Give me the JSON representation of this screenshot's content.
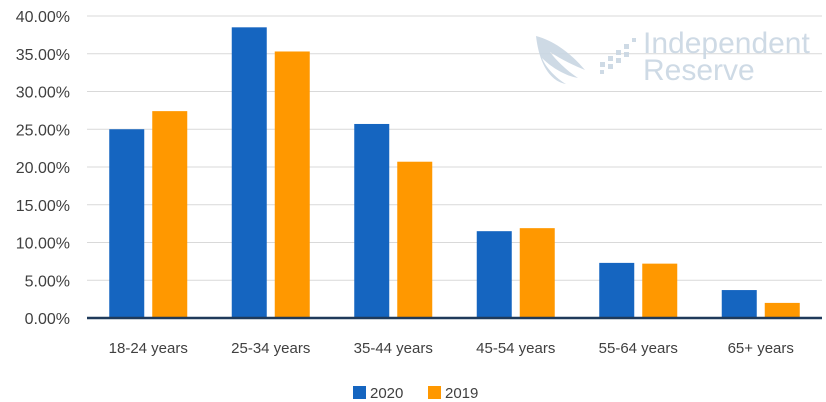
{
  "chart_data": {
    "type": "bar",
    "categories": [
      "18-24 years",
      "25-34 years",
      "35-44 years",
      "45-54 years",
      "55-64 years",
      "65+ years"
    ],
    "series": [
      {
        "name": "2020",
        "color": "#1565c0",
        "values": [
          25.0,
          38.5,
          25.7,
          11.5,
          7.3,
          3.7
        ]
      },
      {
        "name": "2019",
        "color": "#ff9800",
        "values": [
          27.4,
          35.3,
          20.7,
          11.9,
          7.2,
          2.0
        ]
      }
    ],
    "y_ticks": [
      "0.00%",
      "5.00%",
      "10.00%",
      "15.00%",
      "20.00%",
      "25.00%",
      "30.00%",
      "35.00%",
      "40.00%"
    ],
    "ylim": [
      0,
      40
    ],
    "grid": true,
    "legend_position": "bottom-center"
  },
  "watermark": {
    "line1": "Independent",
    "line2": "Reserve",
    "icon": "wing-icon",
    "color": "#c9d6e3"
  }
}
